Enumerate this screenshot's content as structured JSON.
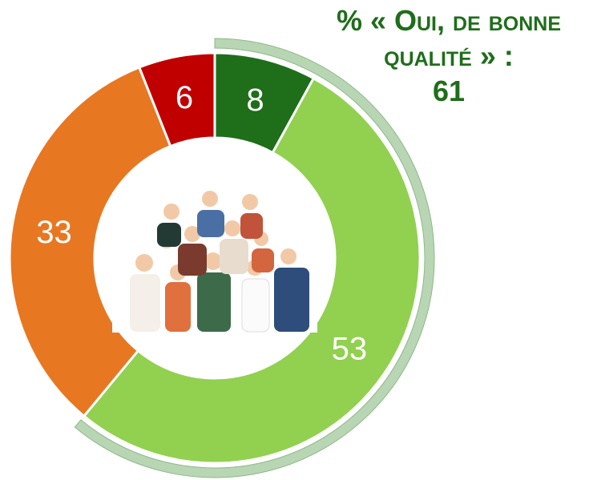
{
  "chart_data": {
    "type": "pie",
    "values": [
      8,
      53,
      33,
      6
    ],
    "colors": [
      "#1f6e1a",
      "#92d050",
      "#e87722",
      "#c00000"
    ],
    "annotation": "% « Oui, de bonne qualité » :",
    "annotation_value": 61,
    "annotation_color": "#1f6e1a",
    "highlight_color": "#b8d6b3"
  }
}
